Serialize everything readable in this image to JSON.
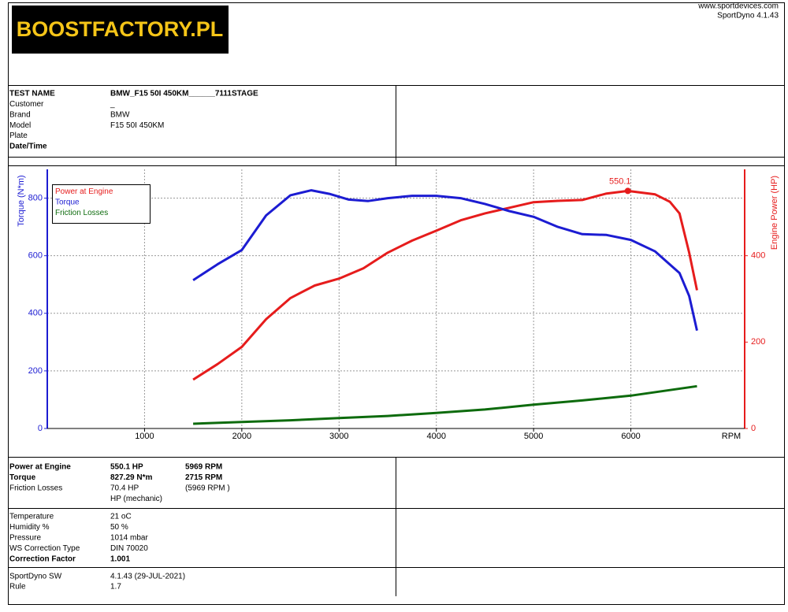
{
  "logo": "BOOSTFACTORY.PL",
  "site": "www.sportdevices.com",
  "software": "SportDyno 4.1.43",
  "info": {
    "bold": [
      0,
      5
    ],
    "rows": [
      [
        "TEST NAME",
        "BMW_F15 50I 450KM______7111STAGE"
      ],
      [
        "Customer",
        "_"
      ],
      [
        "Brand",
        "BMW"
      ],
      [
        "Model",
        "F15 50I 450KM"
      ],
      [
        "Plate"
      ],
      [
        "Date/Time"
      ]
    ]
  },
  "chart_data": {
    "type": "line",
    "x_label": "RPM",
    "y_label": "Torque (N*m)",
    "y2_label": "Engine Power (HP)",
    "xlim": [
      0,
      7170
    ],
    "xticks": [
      1000,
      2000,
      3000,
      4000,
      5000,
      6000
    ],
    "ylim": [
      0,
      900
    ],
    "yticks": [
      0,
      200,
      400,
      600,
      800
    ],
    "y2lim": [
      0,
      600
    ],
    "y2ticks": [
      0,
      200,
      400
    ],
    "grid": true,
    "series": [
      {
        "name": "Power at Engine",
        "color": "#e61c1c",
        "axis": "y2",
        "x": [
          1500,
          1750,
          2000,
          2250,
          2500,
          2750,
          3000,
          3250,
          3500,
          3750,
          4000,
          4250,
          4500,
          4750,
          5000,
          5250,
          5500,
          5750,
          5969,
          6250,
          6400,
          6500,
          6600,
          6680
        ],
        "values": [
          113,
          149,
          189,
          253,
          302,
          331,
          347,
          371,
          407,
          435,
          458,
          482,
          498,
          511,
          524,
          527,
          529,
          544,
          550.1,
          542,
          525,
          498,
          407,
          320
        ]
      },
      {
        "name": "Torque",
        "color": "#1c1cd2",
        "x": [
          1500,
          1750,
          2000,
          2250,
          2500,
          2715,
          2900,
          3100,
          3300,
          3500,
          3750,
          4000,
          4250,
          4500,
          4750,
          5000,
          5250,
          5500,
          5750,
          6000,
          6250,
          6500,
          6600,
          6680
        ],
        "values": [
          515,
          570,
          620,
          740,
          810,
          827.29,
          815,
          795,
          790,
          800,
          808,
          808,
          800,
          780,
          755,
          735,
          700,
          675,
          672,
          655,
          615,
          540,
          460,
          340
        ]
      },
      {
        "name": "Friction Losses",
        "color": "#0d6b0d",
        "axis": "y2",
        "x": [
          1500,
          2000,
          2500,
          3000,
          3500,
          4000,
          4500,
          5000,
          5500,
          6000,
          6680
        ],
        "values": [
          11,
          15,
          19,
          24,
          29,
          36,
          44,
          55,
          65,
          76,
          98
        ]
      }
    ],
    "annotation": {
      "series": 0,
      "x": 5969,
      "value": 550.1
    }
  },
  "results": {
    "bold": [
      0,
      1
    ],
    "rows": [
      [
        "Power at Engine",
        "550.1 HP",
        "5969 RPM"
      ],
      [
        "Torque",
        "827.29 N*m",
        "2715 RPM"
      ],
      [
        "Friction Losses",
        "70.4 HP",
        "(5969 RPM )"
      ],
      [
        null,
        "HP (mechanic)"
      ]
    ]
  },
  "conditions": {
    "bold": [
      4
    ],
    "rows": [
      [
        "Temperature",
        "21 oC"
      ],
      [
        "Humidity %",
        "50 %"
      ],
      [
        "Pressure",
        "1014 mbar"
      ],
      [
        "WS Correction Type",
        "DIN 70020"
      ],
      [
        "Correction Factor",
        "1.001"
      ]
    ]
  },
  "system": {
    "bold": [],
    "rows": [
      [
        "SportDyno SW",
        "4.1.43 (29-JUL-2021)"
      ],
      [
        "Rule",
        "1.7"
      ]
    ]
  }
}
